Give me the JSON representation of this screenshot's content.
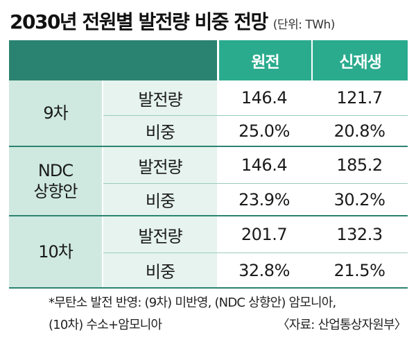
{
  "title": "2030년 전원별 발전량 비중 전망",
  "unit": "(단위: TWh)",
  "colors": {
    "header_dark": "#2a8370",
    "header_accent": "#2bab8e",
    "group_bg": "#cfe9e0",
    "sub_bg": "#e6f3ee"
  },
  "table": {
    "columns": [
      "원전",
      "신재생"
    ],
    "groups": [
      {
        "label": "9차",
        "rows": [
          {
            "metric": "발전량",
            "nuclear": "146.4",
            "renewable": "121.7"
          },
          {
            "metric": "비중",
            "nuclear": "25.0%",
            "renewable": "20.8%"
          }
        ]
      },
      {
        "label_line1": "NDC",
        "label_line2": "상향안",
        "rows": [
          {
            "metric": "발전량",
            "nuclear": "146.4",
            "renewable": "185.2"
          },
          {
            "metric": "비중",
            "nuclear": "23.9%",
            "renewable": "30.2%"
          }
        ]
      },
      {
        "label": "10차",
        "rows": [
          {
            "metric": "발전량",
            "nuclear": "201.7",
            "renewable": "132.3"
          },
          {
            "metric": "비중",
            "nuclear": "32.8%",
            "renewable": "21.5%"
          }
        ]
      }
    ]
  },
  "footnote_line1": "*무탄소 발전 반영: (9차) 미반영, (NDC 상향안) 암모니아,",
  "footnote_line2": "(10차) 수소+암모니아",
  "source": "〈자료: 산업통상자원부〉"
}
